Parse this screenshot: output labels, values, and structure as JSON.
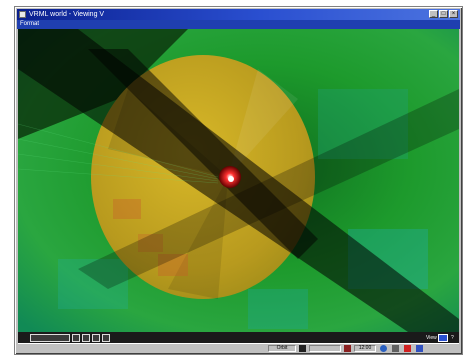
{
  "window": {
    "title": "VRML world - Viewing V",
    "menu_label": "Format",
    "controls": {
      "minimize": "_",
      "maximize": "□",
      "close": "×"
    }
  },
  "toolbar": {
    "left_label": "",
    "right_label": "View",
    "right_button": "",
    "help_label": "?"
  },
  "statusbar": {
    "mode_label": "Orbit",
    "coord_label": "12:00",
    "icons": [
      "walk-icon",
      "slider-icon",
      "move-icon",
      "globe-icon",
      "zoom-icon",
      "stop-icon",
      "help-icon"
    ]
  },
  "colors": {
    "background_green": "#1a8a2a",
    "disc_yellow": "#c8a820",
    "center_red": "#e01010",
    "title_blue": "#0a1f8f"
  }
}
